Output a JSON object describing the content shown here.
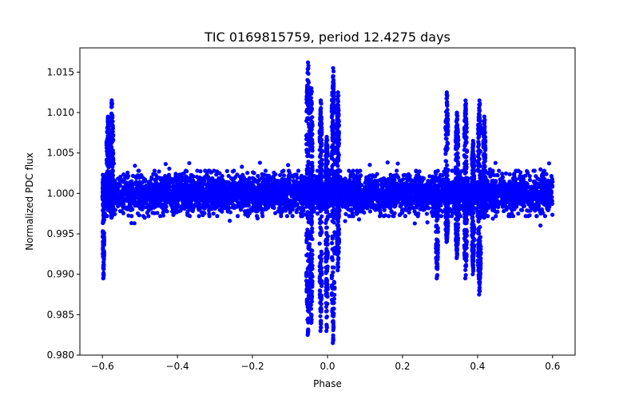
{
  "chart_data": {
    "type": "scatter",
    "title": "TIC 0169815759, period 12.4275 days",
    "xlabel": "Phase",
    "ylabel": "Normalized PDC flux",
    "xlim": [
      -0.66,
      0.66
    ],
    "ylim": [
      0.98,
      1.018
    ],
    "xticks": [
      -0.6,
      -0.4,
      -0.2,
      0.0,
      0.2,
      0.4,
      0.6
    ],
    "xtick_labels": [
      "−0.6",
      "−0.4",
      "−0.2",
      "0.0",
      "0.2",
      "0.4",
      "0.6"
    ],
    "yticks": [
      0.98,
      0.985,
      0.99,
      0.995,
      1.0,
      1.005,
      1.01,
      1.015
    ],
    "ytick_labels": [
      "0.980",
      "0.985",
      "0.990",
      "0.995",
      "1.000",
      "1.005",
      "1.010",
      "1.015"
    ],
    "grid": false,
    "marker_color": "#0000ff",
    "series": [
      {
        "name": "PDC flux",
        "x_range": [
          -0.6,
          0.6
        ],
        "baseline": 1.0,
        "baseline_scatter": 0.0028,
        "features": [
          {
            "phase": -0.597,
            "width": 0.004,
            "high": 1.002,
            "low": 0.9895
          },
          {
            "phase": -0.585,
            "width": 0.008,
            "high": 1.0095,
            "low": 0.998
          },
          {
            "phase": -0.575,
            "width": 0.008,
            "high": 1.0115,
            "low": 0.997
          },
          {
            "phase": -0.052,
            "width": 0.009,
            "high": 1.0162,
            "low": 0.9825
          },
          {
            "phase": -0.043,
            "width": 0.006,
            "high": 1.013,
            "low": 0.984
          },
          {
            "phase": -0.018,
            "width": 0.006,
            "high": 1.0115,
            "low": 0.983
          },
          {
            "phase": -0.002,
            "width": 0.006,
            "high": 1.007,
            "low": 0.983
          },
          {
            "phase": 0.015,
            "width": 0.008,
            "high": 1.0155,
            "low": 0.9815
          },
          {
            "phase": 0.028,
            "width": 0.006,
            "high": 1.0125,
            "low": 0.9905
          },
          {
            "phase": 0.292,
            "width": 0.006,
            "high": 1.0,
            "low": 0.9895
          },
          {
            "phase": 0.318,
            "width": 0.007,
            "high": 1.0125,
            "low": 0.994
          },
          {
            "phase": 0.345,
            "width": 0.007,
            "high": 1.01,
            "low": 0.992
          },
          {
            "phase": 0.368,
            "width": 0.007,
            "high": 1.0115,
            "low": 0.9895
          },
          {
            "phase": 0.388,
            "width": 0.006,
            "high": 1.0065,
            "low": 0.99
          },
          {
            "phase": 0.405,
            "width": 0.008,
            "high": 1.0115,
            "low": 0.9875
          },
          {
            "phase": 0.418,
            "width": 0.006,
            "high": 1.0095,
            "low": 0.997
          }
        ]
      }
    ]
  }
}
